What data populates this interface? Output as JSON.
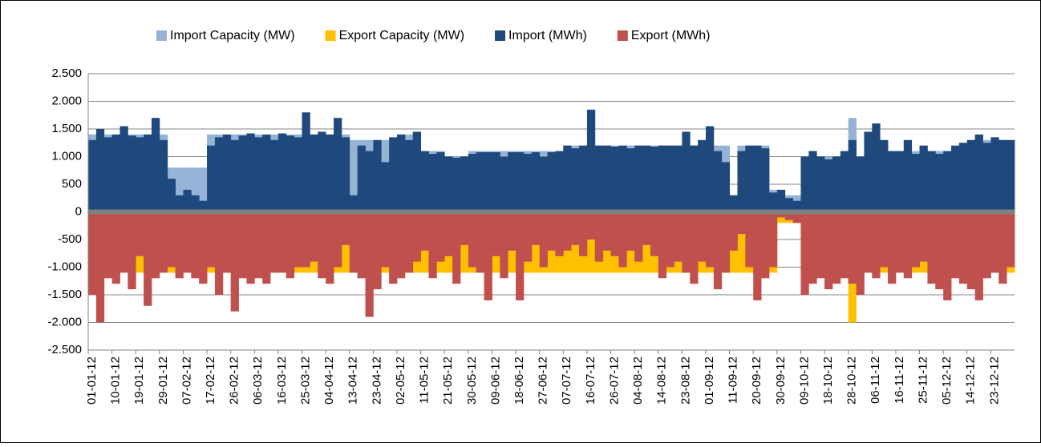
{
  "chart_data": {
    "type": "bar",
    "categories": [
      "01-01-12",
      null,
      null,
      "10-01-12",
      null,
      null,
      "19-01-12",
      null,
      null,
      "29-01-12",
      null,
      null,
      "07-02-12",
      null,
      null,
      "17-02-12",
      null,
      null,
      "26-02-12",
      null,
      null,
      "06-03-12",
      null,
      null,
      "16-03-12",
      null,
      null,
      "25-03-12",
      null,
      null,
      "04-04-12",
      null,
      null,
      "13-04-12",
      null,
      null,
      "23-04-12",
      null,
      null,
      "02-05-12",
      null,
      null,
      "11-05-12",
      null,
      null,
      "21-05-12",
      null,
      null,
      "30-05-12",
      null,
      null,
      "09-06-12",
      null,
      null,
      "18-06-12",
      null,
      null,
      "27-06-12",
      null,
      null,
      "07-07-12",
      null,
      null,
      "16-07-12",
      null,
      null,
      "26-07-12",
      null,
      null,
      "04-08-12",
      null,
      null,
      "14-08-12",
      null,
      null,
      "23-08-12",
      null,
      null,
      "01-09-12",
      null,
      null,
      "11-09-12",
      null,
      null,
      "20-09-12",
      null,
      null,
      "30-09-12",
      null,
      null,
      "09-10-12",
      null,
      null,
      "18-10-12",
      null,
      null,
      "28-10-12",
      null,
      null,
      "06-11-12",
      null,
      null,
      "16-11-12",
      null,
      null,
      "25-11-12",
      null,
      null,
      "05-12-12",
      null,
      null,
      "14-12-12",
      null,
      null,
      "23-12-12",
      null,
      null
    ],
    "series": [
      {
        "name": "Import Capacity  (MW)",
        "color": "#95b3d7",
        "values": [
          1400,
          1400,
          1400,
          1400,
          1400,
          1400,
          1400,
          1400,
          1400,
          1400,
          800,
          800,
          800,
          800,
          800,
          1400,
          1400,
          1400,
          1400,
          1400,
          1400,
          1400,
          1400,
          1400,
          1400,
          1400,
          1400,
          1400,
          1400,
          1400,
          1400,
          1400,
          1400,
          1300,
          1300,
          1300,
          1300,
          1300,
          1300,
          1400,
          1400,
          1400,
          1100,
          1100,
          1100,
          1000,
          1000,
          1000,
          1100,
          1100,
          1100,
          1100,
          1100,
          1100,
          1100,
          1100,
          1100,
          1100,
          1100,
          1100,
          1200,
          1200,
          1200,
          1200,
          1200,
          1200,
          1200,
          1200,
          1200,
          1200,
          1200,
          1200,
          1200,
          1200,
          1200,
          1200,
          1200,
          1200,
          1200,
          1200,
          1200,
          300,
          1200,
          1200,
          1200,
          1200,
          400,
          400,
          300,
          300,
          1000,
          1000,
          1000,
          1000,
          1000,
          1000,
          1700,
          1000,
          1000,
          1100,
          1100,
          1100,
          1100,
          1100,
          1100,
          1100,
          1100,
          1100,
          1100,
          1100,
          1100,
          1300,
          1300,
          1300,
          1300,
          1300,
          1300
        ]
      },
      {
        "name": "Export Capacity  (MW)",
        "color": "#ffc000",
        "values": [
          -1100,
          -1100,
          -1100,
          -1100,
          -1100,
          -1100,
          -1100,
          -1100,
          -1100,
          -1100,
          -1100,
          -1100,
          -1100,
          -1100,
          -1100,
          -1100,
          -1100,
          -1100,
          -1100,
          -1100,
          -1100,
          -1100,
          -1100,
          -1100,
          -1100,
          -1100,
          -1100,
          -1100,
          -1100,
          -1100,
          -1100,
          -1100,
          -1100,
          -1100,
          -1100,
          -1100,
          -1100,
          -1100,
          -1100,
          -1100,
          -1100,
          -1100,
          -1100,
          -1100,
          -1100,
          -1100,
          -1100,
          -1100,
          -1100,
          -1100,
          -1100,
          -1100,
          -1100,
          -1100,
          -1100,
          -1100,
          -1100,
          -1100,
          -1100,
          -1100,
          -1100,
          -1100,
          -1100,
          -1100,
          -1100,
          -1100,
          -1100,
          -1100,
          -1100,
          -1100,
          -1100,
          -1100,
          -1100,
          -1100,
          -1100,
          -1100,
          -1100,
          -1100,
          -1100,
          -1100,
          -1100,
          -1100,
          -1100,
          -1100,
          -1100,
          -1100,
          -1100,
          -200,
          -200,
          -200,
          -1100,
          -1100,
          -1100,
          -1100,
          -1100,
          -1100,
          -2000,
          -1100,
          -1100,
          -1100,
          -1100,
          -1100,
          -1100,
          -1100,
          -1100,
          -1100,
          -1100,
          -1100,
          -1100,
          -1100,
          -1100,
          -1100,
          -1100,
          -1100,
          -1100,
          -1100,
          -1100
        ]
      },
      {
        "name": "Import (MWh)",
        "color": "#1f497d",
        "values": [
          1300,
          1500,
          1350,
          1400,
          1550,
          1380,
          1350,
          1400,
          1700,
          1300,
          600,
          300,
          400,
          300,
          200,
          1200,
          1350,
          1400,
          1300,
          1380,
          1420,
          1350,
          1400,
          1300,
          1420,
          1380,
          1350,
          1800,
          1400,
          1450,
          1400,
          1700,
          1350,
          300,
          1200,
          1100,
          1300,
          900,
          1350,
          1400,
          1300,
          1450,
          1100,
          1050,
          1080,
          1000,
          980,
          1000,
          1050,
          1080,
          1080,
          1080,
          1000,
          1080,
          1080,
          1050,
          1080,
          1000,
          1080,
          1100,
          1200,
          1150,
          1200,
          1850,
          1200,
          1200,
          1180,
          1200,
          1150,
          1200,
          1200,
          1180,
          1200,
          1200,
          1200,
          1450,
          1200,
          1300,
          1550,
          1100,
          900,
          300,
          1100,
          1200,
          1200,
          1150,
          350,
          400,
          250,
          200,
          1000,
          1100,
          1000,
          950,
          1000,
          1100,
          1300,
          1000,
          1450,
          1600,
          1300,
          1100,
          1100,
          1300,
          1050,
          1200,
          1100,
          1050,
          1100,
          1200,
          1250,
          1300,
          1400,
          1250,
          1350,
          1300,
          1300
        ]
      },
      {
        "name": "Export (MWh)",
        "color": "#c0504d",
        "values": [
          -1500,
          -2000,
          -1200,
          -1300,
          -1100,
          -1400,
          -800,
          -1700,
          -1200,
          -1100,
          -1000,
          -1200,
          -1100,
          -1200,
          -1300,
          -1000,
          -1500,
          -1100,
          -1800,
          -1200,
          -1300,
          -1200,
          -1300,
          -1100,
          -1100,
          -1200,
          -1000,
          -1000,
          -900,
          -1200,
          -1300,
          -1000,
          -600,
          -1100,
          -1200,
          -1900,
          -1400,
          -1000,
          -1300,
          -1200,
          -1100,
          -900,
          -700,
          -1200,
          -900,
          -800,
          -1300,
          -600,
          -1000,
          -1100,
          -1600,
          -800,
          -1200,
          -700,
          -1600,
          -900,
          -600,
          -1000,
          -700,
          -800,
          -700,
          -600,
          -800,
          -500,
          -900,
          -700,
          -800,
          -1000,
          -700,
          -900,
          -600,
          -800,
          -1200,
          -1000,
          -900,
          -1100,
          -1300,
          -900,
          -1000,
          -1400,
          -1100,
          -700,
          -400,
          -1000,
          -1600,
          -1200,
          -1000,
          -100,
          -150,
          -200,
          -1500,
          -1300,
          -1200,
          -1400,
          -1300,
          -1200,
          -1300,
          -1500,
          -1100,
          -1200,
          -1000,
          -1300,
          -1100,
          -1200,
          -1000,
          -900,
          -1300,
          -1400,
          -1600,
          -1200,
          -1300,
          -1400,
          -1600,
          -1200,
          -1100,
          -1300,
          -1000
        ]
      }
    ],
    "ylim": [
      -2500,
      2500
    ],
    "yticks": [
      {
        "value": -2500,
        "label": "-2.500"
      },
      {
        "value": -2000,
        "label": "-2.000"
      },
      {
        "value": -1500,
        "label": "-1.500"
      },
      {
        "value": -1000,
        "label": "-1.000"
      },
      -500,
      0,
      500,
      {
        "value": 1000,
        "label": "1.000"
      },
      {
        "value": 1500,
        "label": "1.500"
      },
      {
        "value": 2000,
        "label": "2.000"
      },
      {
        "value": 2500,
        "label": "2.500"
      }
    ],
    "grid": true,
    "legend": "top"
  }
}
